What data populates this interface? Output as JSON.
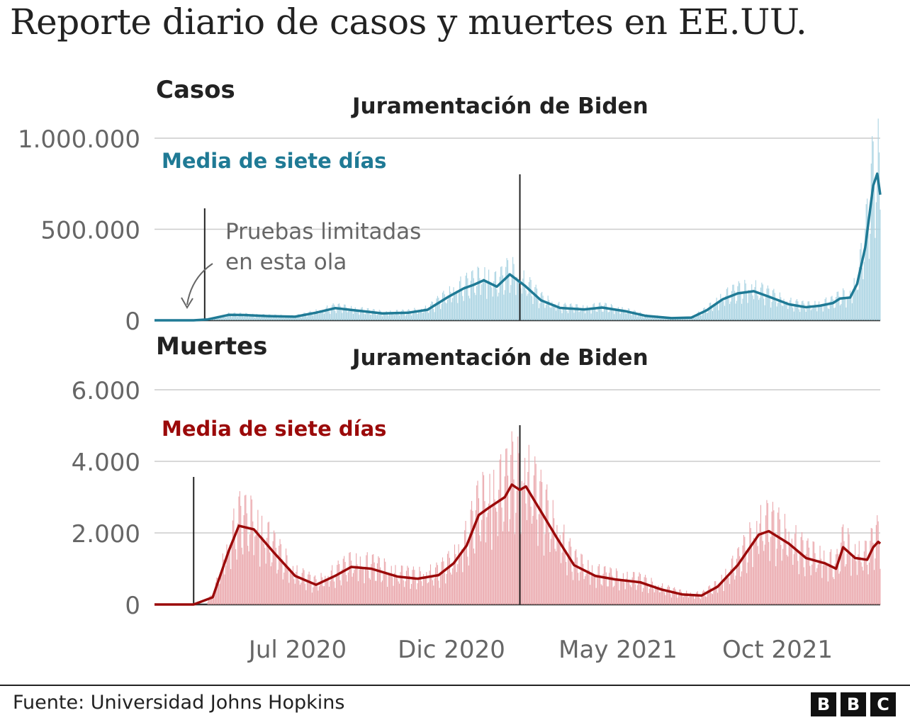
{
  "title": "Reporte diario de casos y muertes en EE.UU.",
  "source": "Fuente: Universidad Johns Hopkins",
  "logo": {
    "text": "BBC",
    "letters": [
      "B",
      "B",
      "C"
    ]
  },
  "x_ticks": [
    "Jul 2020",
    "Dic 2020",
    "May 2021",
    "Oct 2021"
  ],
  "colors": {
    "cases_line": "#1f7a95",
    "cases_bars": "#a9d3e2",
    "deaths_line": "#9b0a0a",
    "deaths_bars": "#eaa6ab",
    "grid": "#cccccc",
    "text": "#222222",
    "axis_text": "#666666"
  },
  "chart_data": [
    {
      "type": "area",
      "panel_title": "Casos",
      "series_label": "Media de siete días",
      "annotation_event": "Juramentación de Biden",
      "annotation_limited": [
        "Pruebas limitadas",
        "en esta ola"
      ],
      "y_ticks": [
        "1.000.000",
        "500.000",
        "0"
      ],
      "ylim": [
        0,
        1350000
      ],
      "y_tick_values": [
        1000000,
        500000,
        0
      ],
      "x_range": [
        "2020-01-22",
        "2022-01-14"
      ],
      "event_lines": [
        "2020-03-12",
        "2021-01-20"
      ],
      "seven_day_average": [
        [
          "2020-01-22",
          0
        ],
        [
          "2020-03-01",
          0
        ],
        [
          "2020-03-15",
          5000
        ],
        [
          "2020-04-05",
          30000
        ],
        [
          "2020-04-20",
          29000
        ],
        [
          "2020-05-15",
          23000
        ],
        [
          "2020-06-10",
          20000
        ],
        [
          "2020-07-01",
          42000
        ],
        [
          "2020-07-20",
          67000
        ],
        [
          "2020-08-10",
          54000
        ],
        [
          "2020-09-05",
          38000
        ],
        [
          "2020-10-01",
          42000
        ],
        [
          "2020-10-20",
          58000
        ],
        [
          "2020-11-10",
          130000
        ],
        [
          "2020-11-25",
          175000
        ],
        [
          "2020-12-05",
          195000
        ],
        [
          "2020-12-15",
          220000
        ],
        [
          "2020-12-28",
          185000
        ],
        [
          "2021-01-10",
          252000
        ],
        [
          "2021-01-25",
          190000
        ],
        [
          "2021-02-10",
          110000
        ],
        [
          "2021-03-01",
          68000
        ],
        [
          "2021-03-25",
          60000
        ],
        [
          "2021-04-12",
          70000
        ],
        [
          "2021-05-05",
          50000
        ],
        [
          "2021-05-25",
          25000
        ],
        [
          "2021-06-20",
          12000
        ],
        [
          "2021-07-10",
          15000
        ],
        [
          "2021-07-25",
          55000
        ],
        [
          "2021-08-10",
          115000
        ],
        [
          "2021-08-25",
          148000
        ],
        [
          "2021-09-10",
          160000
        ],
        [
          "2021-09-25",
          130000
        ],
        [
          "2021-10-15",
          88000
        ],
        [
          "2021-11-01",
          72000
        ],
        [
          "2021-11-15",
          80000
        ],
        [
          "2021-11-28",
          95000
        ],
        [
          "2021-12-05",
          120000
        ],
        [
          "2021-12-15",
          125000
        ],
        [
          "2021-12-22",
          200000
        ],
        [
          "2021-12-30",
          400000
        ],
        [
          "2022-01-07",
          740000
        ],
        [
          "2022-01-11",
          805000
        ],
        [
          "2022-01-14",
          690000
        ]
      ]
    },
    {
      "type": "area",
      "panel_title": "Muertes",
      "series_label": "Media de siete días",
      "annotation_event": "Juramentación de Biden",
      "y_ticks": [
        "6.000",
        "4.000",
        "2.000",
        "0"
      ],
      "ylim": [
        0,
        6000
      ],
      "y_tick_values": [
        6000,
        4000,
        2000,
        0
      ],
      "x_range": [
        "2020-01-22",
        "2022-01-14"
      ],
      "event_lines": [
        "2020-03-01",
        "2021-01-20"
      ],
      "seven_day_average": [
        [
          "2020-01-22",
          0
        ],
        [
          "2020-03-01",
          0
        ],
        [
          "2020-03-20",
          200
        ],
        [
          "2020-04-05",
          1500
        ],
        [
          "2020-04-15",
          2200
        ],
        [
          "2020-04-30",
          2100
        ],
        [
          "2020-05-20",
          1450
        ],
        [
          "2020-06-10",
          800
        ],
        [
          "2020-07-01",
          550
        ],
        [
          "2020-07-20",
          800
        ],
        [
          "2020-08-05",
          1050
        ],
        [
          "2020-08-25",
          1000
        ],
        [
          "2020-09-20",
          780
        ],
        [
          "2020-10-10",
          720
        ],
        [
          "2020-10-31",
          820
        ],
        [
          "2020-11-15",
          1150
        ],
        [
          "2020-11-28",
          1650
        ],
        [
          "2020-12-10",
          2500
        ],
        [
          "2020-12-20",
          2700
        ],
        [
          "2021-01-05",
          3000
        ],
        [
          "2021-01-12",
          3350
        ],
        [
          "2021-01-20",
          3200
        ],
        [
          "2021-01-26",
          3300
        ],
        [
          "2021-02-10",
          2600
        ],
        [
          "2021-02-25",
          1900
        ],
        [
          "2021-03-15",
          1100
        ],
        [
          "2021-04-05",
          800
        ],
        [
          "2021-04-25",
          700
        ],
        [
          "2021-05-20",
          620
        ],
        [
          "2021-06-10",
          420
        ],
        [
          "2021-07-01",
          280
        ],
        [
          "2021-07-20",
          250
        ],
        [
          "2021-08-05",
          500
        ],
        [
          "2021-08-25",
          1100
        ],
        [
          "2021-09-15",
          1950
        ],
        [
          "2021-09-25",
          2050
        ],
        [
          "2021-10-15",
          1700
        ],
        [
          "2021-11-01",
          1300
        ],
        [
          "2021-11-20",
          1150
        ],
        [
          "2021-12-01",
          1000
        ],
        [
          "2021-12-08",
          1600
        ],
        [
          "2021-12-20",
          1300
        ],
        [
          "2022-01-01",
          1250
        ],
        [
          "2022-01-07",
          1600
        ],
        [
          "2022-01-12",
          1750
        ],
        [
          "2022-01-14",
          1700
        ]
      ]
    }
  ]
}
